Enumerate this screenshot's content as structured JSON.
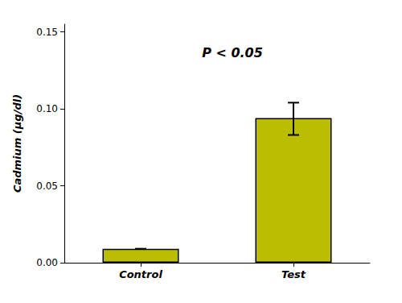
{
  "chart_data": {
    "type": "bar",
    "categories": [
      "Control",
      "Test"
    ],
    "values": [
      0.009,
      0.094
    ],
    "errors_upper": [
      0.0,
      0.01
    ],
    "errors_lower": [
      0.0,
      0.011
    ],
    "color": "#BBBE00",
    "ylabel": "Cadmium (μg/dl)",
    "ylim": [
      0,
      0.155
    ],
    "yticks": [
      {
        "value": 0,
        "label": "0.00"
      },
      0.05,
      {
        "value": 0.1,
        "label": "0.10"
      },
      0.15
    ],
    "annotation": "P < 0.05",
    "grid": false
  }
}
